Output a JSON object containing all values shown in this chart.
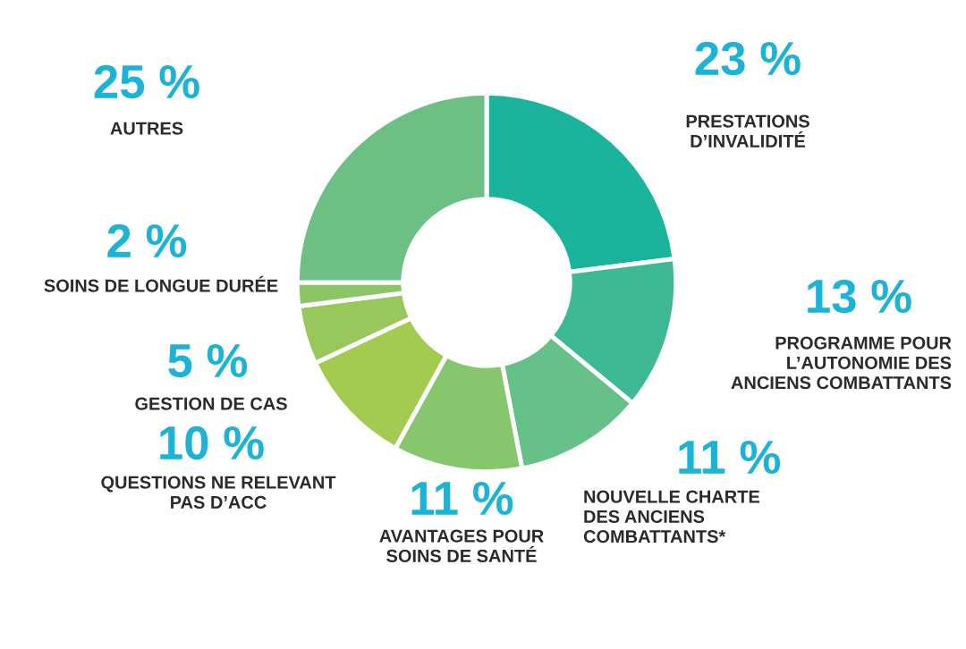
{
  "chart_data": {
    "type": "donut",
    "categories": [
      "PRESTATIONS\nD’INVALIDITÉ",
      "PROGRAMME POUR\nL’AUTONOMIE DES\nANCIENS COMBATTANTS",
      "NOUVELLE CHARTE\nDES ANCIENS\nCOMBATTANTS*",
      "AVANTAGES POUR\nSOINS DE SANTÉ",
      "QUESTIONS NE RELEVANT\nPAS D’ACC",
      "GESTION DE CAS",
      "SOINS DE LONGUE DURÉE",
      "AUTRES"
    ],
    "values": [
      23,
      13,
      11,
      11,
      10,
      5,
      2,
      25
    ],
    "value_labels": [
      "23 %",
      "13 %",
      "11 %",
      "11 %",
      "10 %",
      "5 %",
      "2 %",
      "25 %"
    ],
    "colors": [
      "#1ab49c",
      "#3dba94",
      "#66c189",
      "#86c66c",
      "#a3cb50",
      "#98c85b",
      "#8cc565",
      "#6dbf84"
    ]
  }
}
